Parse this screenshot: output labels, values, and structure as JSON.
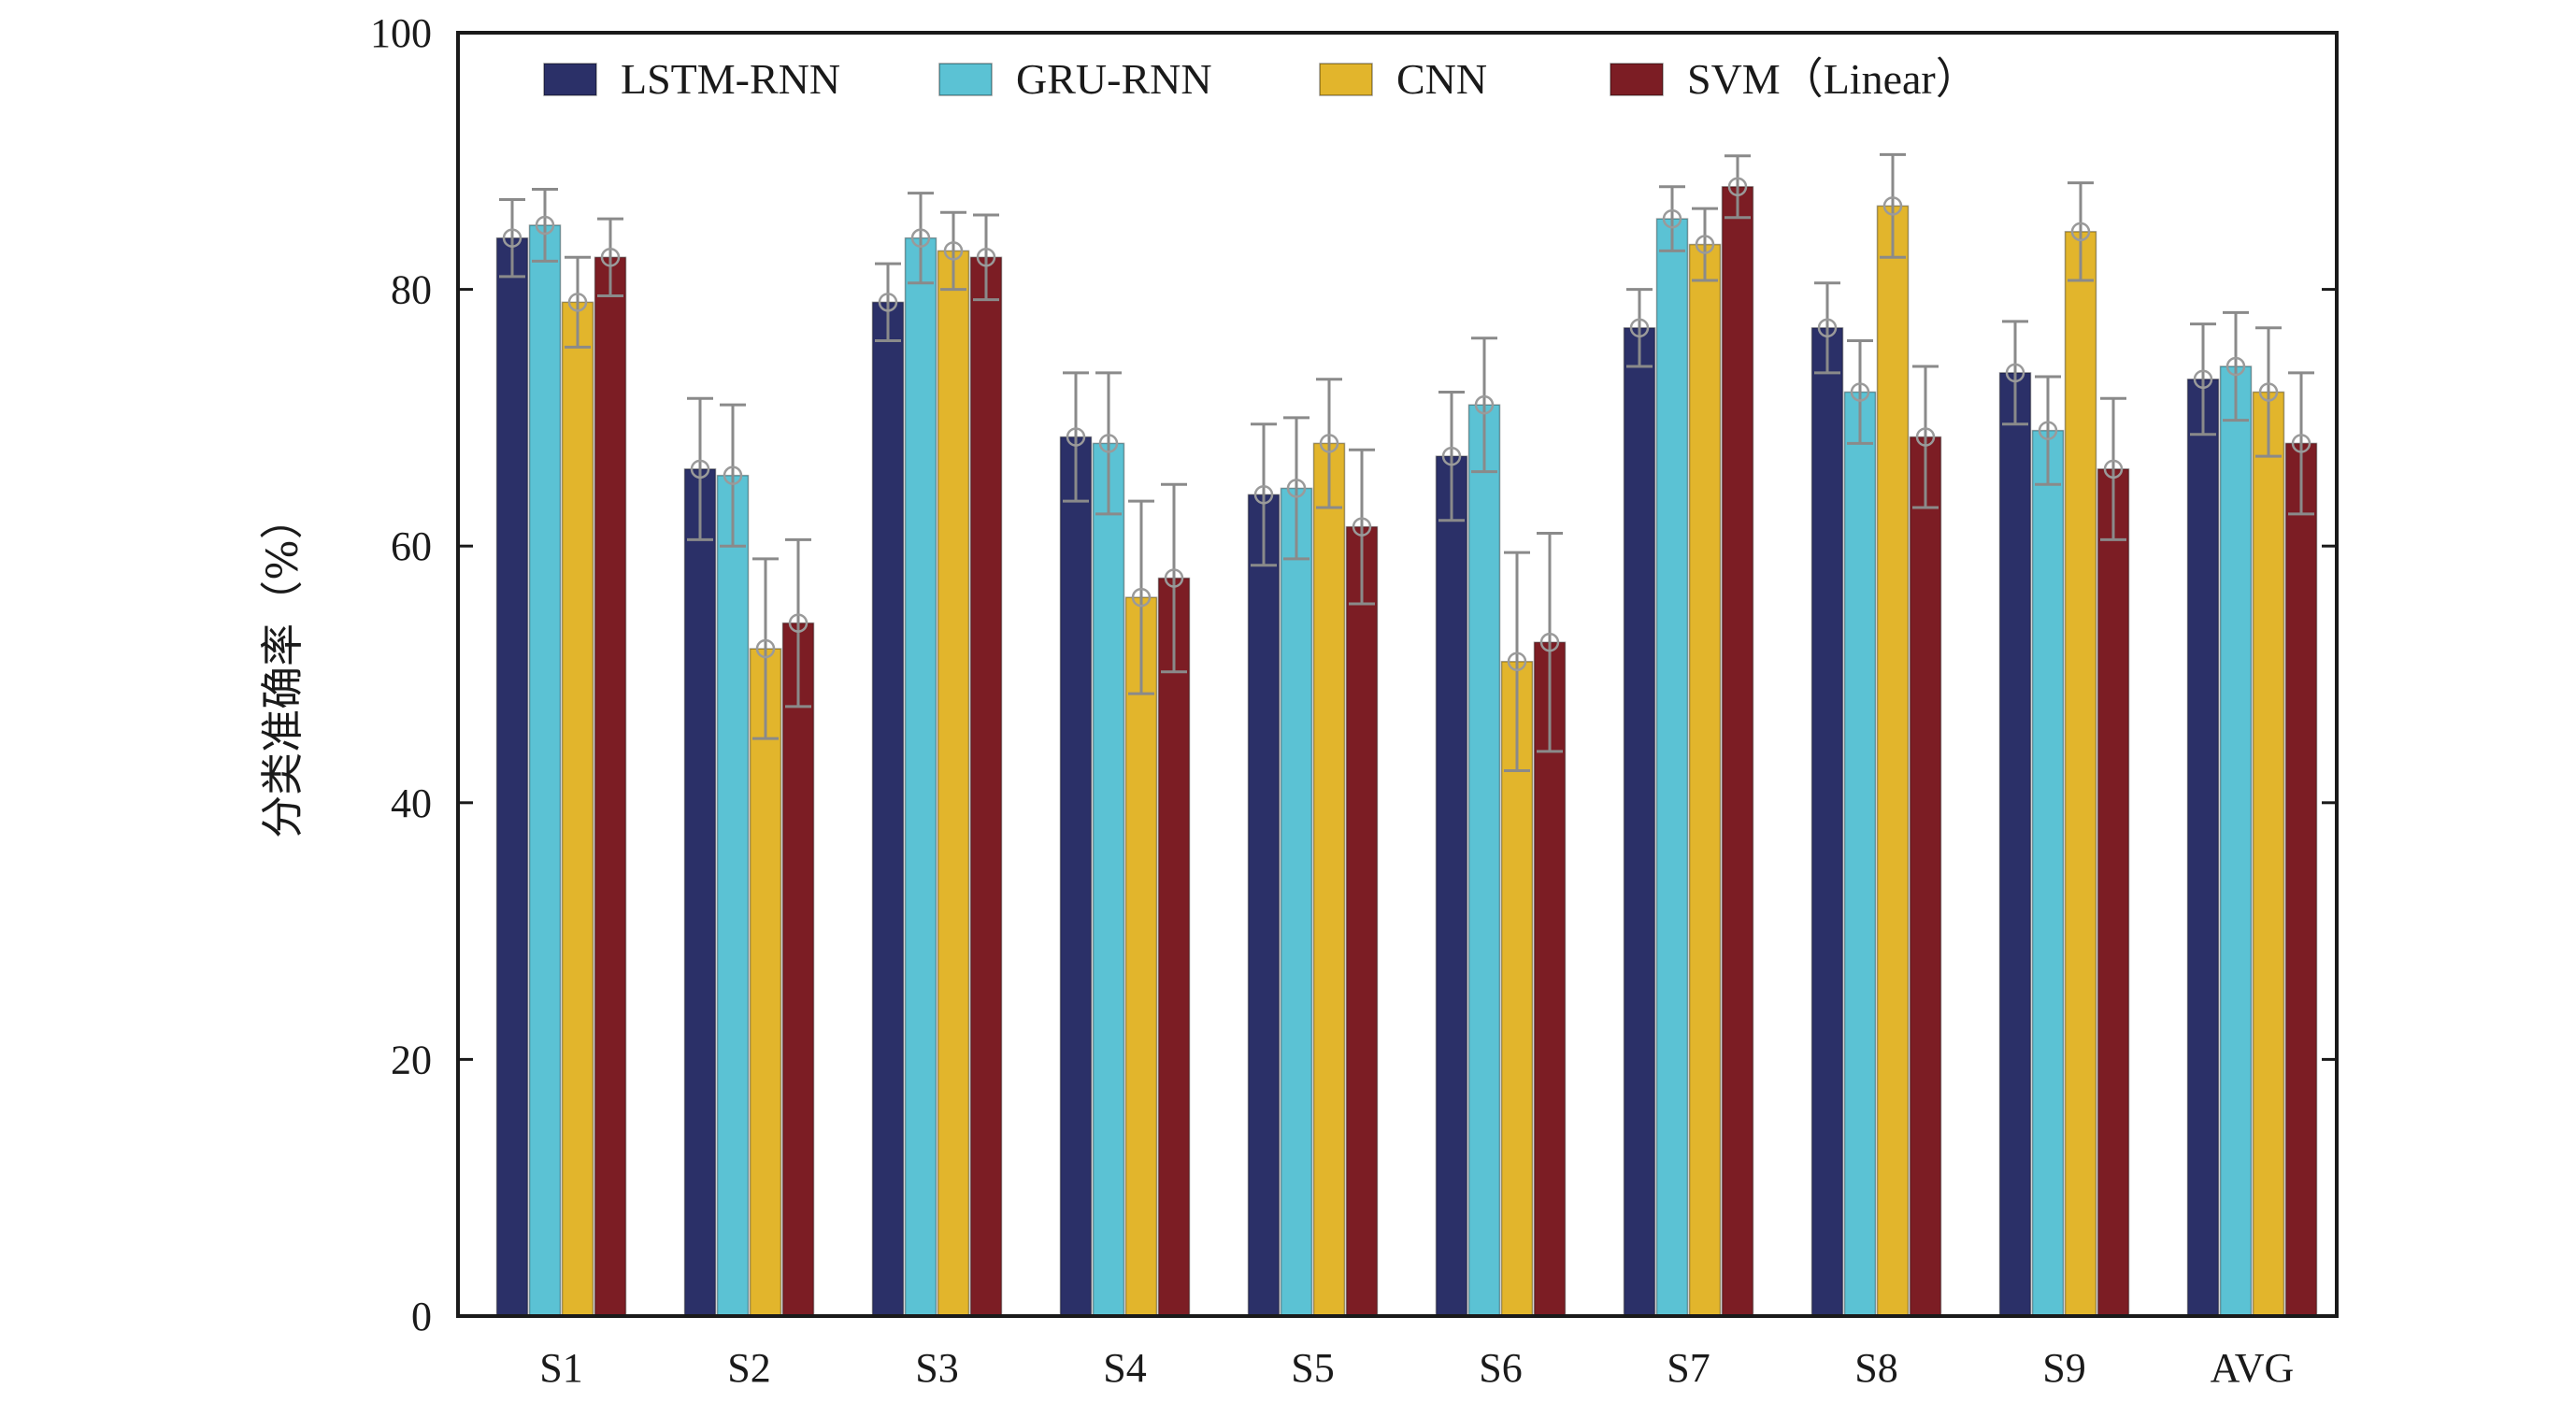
{
  "chart_data": {
    "type": "bar",
    "title": "",
    "xlabel": "",
    "ylabel": "分类准确率（%）",
    "ylim": [
      0,
      100
    ],
    "yticks": [
      0,
      20,
      40,
      60,
      80,
      100
    ],
    "grid": false,
    "legend_position": "top",
    "categories": [
      "S1",
      "S2",
      "S3",
      "S4",
      "S5",
      "S6",
      "S7",
      "S8",
      "S9",
      "AVG"
    ],
    "series": [
      {
        "name": "LSTM-RNN",
        "color": "#2b3068",
        "values": [
          84,
          66,
          79,
          68.5,
          64,
          67,
          77,
          77,
          73.5,
          73
        ],
        "errors": [
          3,
          5.5,
          3,
          5,
          5.5,
          5,
          3,
          3.5,
          4,
          4.3
        ]
      },
      {
        "name": "GRU-RNN",
        "color": "#5bc2d4",
        "values": [
          85,
          65.5,
          84,
          68,
          64.5,
          71,
          85.5,
          72,
          69,
          74
        ],
        "errors": [
          2.8,
          5.5,
          3.5,
          5.5,
          5.5,
          5.2,
          2.5,
          4,
          4.2,
          4.2
        ]
      },
      {
        "name": "CNN",
        "color": "#e2b52c",
        "values": [
          79,
          52,
          83,
          56,
          68,
          51,
          83.5,
          86.5,
          84.5,
          72
        ],
        "errors": [
          3.5,
          7,
          3,
          7.5,
          5,
          8.5,
          2.8,
          4,
          3.8,
          5
        ]
      },
      {
        "name": "SVM（Linear）",
        "color": "#7c1d24",
        "values": [
          82.5,
          54,
          82.5,
          57.5,
          61.5,
          52.5,
          88,
          68.5,
          66,
          68
        ],
        "errors": [
          3,
          6.5,
          3.3,
          7.3,
          6,
          8.5,
          2.4,
          5.5,
          5.5,
          5.5
        ]
      }
    ]
  }
}
